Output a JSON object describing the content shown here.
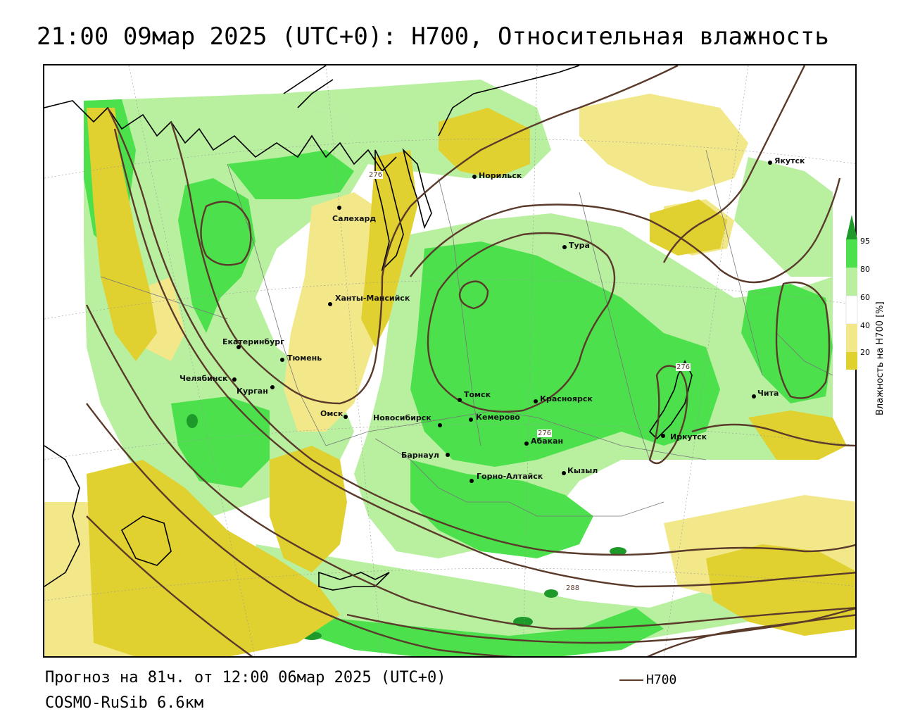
{
  "title": "21:00 09мар 2025 (UTC+0): H700, Относительная влажность",
  "footer": {
    "forecast": "Прогноз на 81ч. от 12:00 06мар 2025 (UTC+0)",
    "model": "COSMO-RuSib 6.6км",
    "contour_legend": "H700"
  },
  "legend": {
    "title": "Влажность на H700 [%]",
    "ticks": [
      "95",
      "80",
      "60",
      "40",
      "20"
    ],
    "colors": {
      "very_dry": "#e0d030",
      "dry": "#f2e88a",
      "neutral": "#ffffff",
      "moist": "#b8f0a0",
      "wet": "#4ce04c",
      "very_wet": "#1e9a2a"
    }
  },
  "contour_color": "#5a3a2a",
  "isolines": [
    "276",
    "276",
    "276",
    "288"
  ],
  "cities": [
    {
      "name": "Норильск"
    },
    {
      "name": "Якутск"
    },
    {
      "name": "Салехард"
    },
    {
      "name": "Тура"
    },
    {
      "name": "Ханты-Мансийск"
    },
    {
      "name": "Екатеринбург"
    },
    {
      "name": "Тюмень"
    },
    {
      "name": "Челябинск"
    },
    {
      "name": "Курган"
    },
    {
      "name": "Омск"
    },
    {
      "name": "Томск"
    },
    {
      "name": "Красноярск"
    },
    {
      "name": "Новосибирск"
    },
    {
      "name": "Кемерово"
    },
    {
      "name": "Абакан"
    },
    {
      "name": "Иркутск"
    },
    {
      "name": "Чита"
    },
    {
      "name": "Барнаул"
    },
    {
      "name": "Горно-Алтайск"
    },
    {
      "name": "Кызыл"
    }
  ]
}
